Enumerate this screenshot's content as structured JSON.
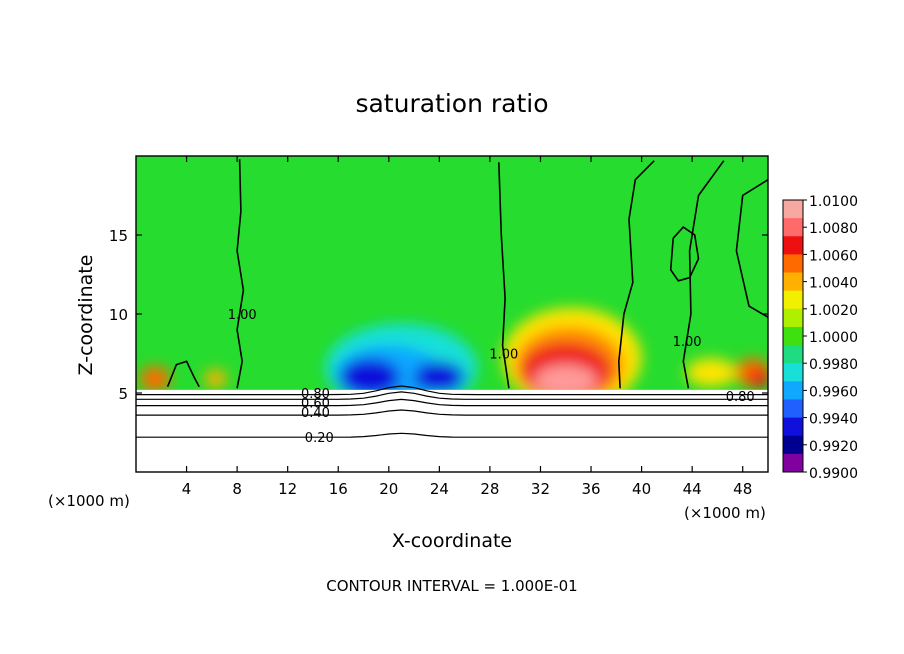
{
  "chart_data": {
    "type": "heatmap",
    "title": "saturation ratio",
    "xlabel": "X-coordinate",
    "ylabel": "Z-coordinate",
    "x_unit_left": "(×1000 m)",
    "x_unit_right": "(×1000 m)",
    "xlim": [
      0,
      50
    ],
    "ylim": [
      0,
      20
    ],
    "x_ticks": [
      4,
      8,
      12,
      16,
      20,
      24,
      28,
      32,
      36,
      40,
      44,
      48
    ],
    "x_tick_labels": [
      "4",
      "8",
      "12",
      "16",
      "20",
      "24",
      "28",
      "32",
      "36",
      "40",
      "44",
      "48"
    ],
    "y_ticks": [
      5,
      10,
      15
    ],
    "y_tick_labels": [
      "5",
      "10",
      "15"
    ],
    "footer": "CONTOUR INTERVAL = 1.000E-01",
    "colorbar": {
      "labels": [
        "1.0100",
        "1.0080",
        "1.0060",
        "1.0040",
        "1.0020",
        "1.0000",
        "0.9980",
        "0.9960",
        "0.9940",
        "0.9920",
        "0.9900"
      ],
      "colors": [
        "#f7a8a0",
        "#ff6a6a",
        "#ee1010",
        "#ff6a00",
        "#ffb000",
        "#f0f000",
        "#aef000",
        "#3ee010",
        "#1edc80",
        "#18e0d8",
        "#10a8ff",
        "#2060ff",
        "#1010dc",
        "#000090",
        "#8000a0"
      ]
    },
    "contour_labels": [
      "1.00",
      "1.00",
      "1.00",
      "0.80",
      "0.80",
      "0.60",
      "0.40",
      "0.20"
    ],
    "field": {
      "background": "#26dc2e",
      "base_top_z": 5.2,
      "features": [
        {
          "x": 34.5,
          "z": 7.2,
          "rx": 5.5,
          "rz": 3.2,
          "color": "#ffe400"
        },
        {
          "x": 34.3,
          "z": 6.8,
          "rx": 4.3,
          "rz": 2.4,
          "color": "#ff8c00"
        },
        {
          "x": 34.0,
          "z": 6.4,
          "rx": 3.6,
          "rz": 1.8,
          "color": "#ee1a1a"
        },
        {
          "x": 34.0,
          "z": 5.8,
          "rx": 2.5,
          "rz": 1.0,
          "color": "#ff9a9a"
        },
        {
          "x": 21.0,
          "z": 6.6,
          "rx": 6.0,
          "rz": 2.8,
          "color": "#18e0d8"
        },
        {
          "x": 20.0,
          "z": 6.2,
          "rx": 4.2,
          "rz": 1.8,
          "color": "#10a8ff"
        },
        {
          "x": 18.5,
          "z": 6.0,
          "rx": 2.4,
          "rz": 1.2,
          "color": "#1010dc"
        },
        {
          "x": 24.0,
          "z": 6.0,
          "rx": 2.0,
          "rz": 1.0,
          "color": "#1010dc"
        },
        {
          "x": 1.5,
          "z": 5.9,
          "rx": 1.2,
          "rz": 0.8,
          "color": "#ff6a00"
        },
        {
          "x": 6.3,
          "z": 5.9,
          "rx": 0.9,
          "rz": 0.6,
          "color": "#ffb000"
        },
        {
          "x": 48.8,
          "z": 6.3,
          "rx": 1.4,
          "rz": 0.9,
          "color": "#ff6a00"
        },
        {
          "x": 49.3,
          "z": 5.9,
          "rx": 0.8,
          "rz": 0.6,
          "color": "#ee1010"
        },
        {
          "x": 45.5,
          "z": 6.3,
          "rx": 2.0,
          "rz": 0.9,
          "color": "#ffe400"
        }
      ]
    },
    "contours": [
      {
        "label": "1.00",
        "label_at": [
          8.4,
          10.0
        ],
        "points": [
          [
            8.2,
            19.8
          ],
          [
            8.3,
            16.5
          ],
          [
            8.0,
            14.0
          ],
          [
            8.5,
            11.5
          ],
          [
            8.0,
            9.0
          ],
          [
            8.4,
            7.0
          ],
          [
            8.0,
            5.3
          ]
        ]
      },
      {
        "label": "1.00",
        "label_at": [
          29.1,
          7.5
        ],
        "points": [
          [
            28.7,
            19.6
          ],
          [
            28.9,
            15.0
          ],
          [
            29.2,
            11.0
          ],
          [
            29.0,
            8.0
          ],
          [
            29.5,
            5.3
          ]
        ]
      },
      {
        "label": "1.00",
        "label_at": [
          43.6,
          8.3
        ],
        "points": [
          [
            46.5,
            19.7
          ],
          [
            44.5,
            17.5
          ],
          [
            43.8,
            14.0
          ],
          [
            43.9,
            10.0
          ],
          [
            43.3,
            7.0
          ],
          [
            43.7,
            5.3
          ]
        ]
      },
      {
        "label": "",
        "label_at": null,
        "points": [
          [
            41.0,
            19.7
          ],
          [
            39.5,
            18.5
          ],
          [
            39.0,
            16.0
          ],
          [
            39.3,
            12.0
          ],
          [
            38.6,
            10.0
          ],
          [
            38.2,
            7.0
          ],
          [
            38.3,
            5.3
          ]
        ]
      },
      {
        "label": "",
        "label_at": null,
        "points": [
          [
            50.0,
            18.5
          ],
          [
            48.0,
            17.5
          ],
          [
            47.5,
            14.0
          ],
          [
            48.5,
            10.5
          ],
          [
            50.0,
            9.8
          ]
        ]
      },
      {
        "label": "",
        "label_at": null,
        "points": [
          [
            42.5,
            14.8
          ],
          [
            43.3,
            15.5
          ],
          [
            44.2,
            15.0
          ],
          [
            44.5,
            13.5
          ],
          [
            43.8,
            12.3
          ],
          [
            42.9,
            12.1
          ],
          [
            42.3,
            12.8
          ],
          [
            42.5,
            14.8
          ]
        ]
      },
      {
        "label": "",
        "label_at": null,
        "points": [
          [
            2.5,
            5.4
          ],
          [
            3.2,
            6.8
          ],
          [
            4.0,
            7.0
          ],
          [
            4.6,
            6.0
          ],
          [
            5.0,
            5.4
          ]
        ]
      }
    ],
    "levels": [
      {
        "label": "0.80",
        "label_at": [
          47.8,
          4.8
        ],
        "z": 4.9
      },
      {
        "label": "0.80",
        "label_at": [
          14.2,
          5.0
        ],
        "z": 4.6
      },
      {
        "label": "0.60",
        "label_at": [
          14.2,
          4.4
        ],
        "z": 4.2
      },
      {
        "label": "0.40",
        "label_at": [
          14.2,
          3.8
        ],
        "z": 3.6
      },
      {
        "label": "0.20",
        "label_at": [
          14.5,
          2.2
        ],
        "z": 2.2
      }
    ]
  }
}
